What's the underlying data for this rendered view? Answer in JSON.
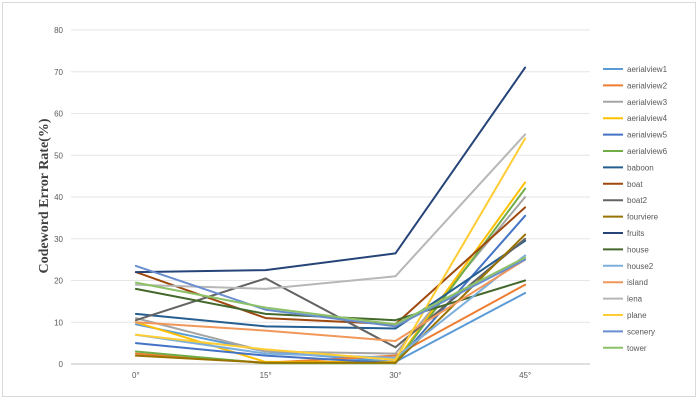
{
  "chart_data": {
    "type": "line",
    "title": "",
    "xlabel": "",
    "ylabel": "Codeword Error Rate(%)",
    "categories": [
      "0°",
      "15°",
      "30°",
      "45°"
    ],
    "ylim": [
      0,
      80
    ],
    "yticks": [
      0,
      10,
      20,
      30,
      40,
      50,
      60,
      70,
      80
    ],
    "grid": true,
    "legend": "right",
    "series": [
      {
        "name": "aerialview1",
        "color": "#5b9bd5",
        "values": [
          9.5,
          3.0,
          0.5,
          17.0
        ]
      },
      {
        "name": "aerialview2",
        "color": "#ed7d31",
        "values": [
          2.5,
          0.3,
          2.0,
          19.0
        ]
      },
      {
        "name": "aerialview3",
        "color": "#a5a5a5",
        "values": [
          11.0,
          3.0,
          2.5,
          40.0
        ]
      },
      {
        "name": "aerialview4",
        "color": "#ffc000",
        "values": [
          10.0,
          0.5,
          0.5,
          43.5
        ]
      },
      {
        "name": "aerialview5",
        "color": "#4472c4",
        "values": [
          5.0,
          2.0,
          0.2,
          35.5
        ]
      },
      {
        "name": "aerialview6",
        "color": "#70ad47",
        "values": [
          3.0,
          0.2,
          0.2,
          42.0
        ]
      },
      {
        "name": "baboon",
        "color": "#255e91",
        "values": [
          12.0,
          9.0,
          8.5,
          29.5
        ]
      },
      {
        "name": "boat",
        "color": "#9e480e",
        "values": [
          22.0,
          11.0,
          9.5,
          37.5
        ]
      },
      {
        "name": "boat2",
        "color": "#636363",
        "values": [
          10.5,
          20.5,
          4.0,
          30.0
        ]
      },
      {
        "name": "fourviere",
        "color": "#997300",
        "values": [
          2.0,
          0.3,
          0.3,
          31.0
        ]
      },
      {
        "name": "fruits",
        "color": "#264478",
        "values": [
          22.0,
          22.5,
          26.5,
          71.0
        ]
      },
      {
        "name": "house",
        "color": "#43682b",
        "values": [
          18.0,
          12.0,
          10.5,
          20.0
        ]
      },
      {
        "name": "house2",
        "color": "#7cafdd",
        "values": [
          7.0,
          2.5,
          1.5,
          26.0
        ]
      },
      {
        "name": "island",
        "color": "#f1975a",
        "values": [
          10.0,
          8.0,
          5.5,
          25.0
        ]
      },
      {
        "name": "lena",
        "color": "#b7b7b7",
        "values": [
          19.0,
          18.0,
          21.0,
          55.0
        ]
      },
      {
        "name": "plane",
        "color": "#ffcd33",
        "values": [
          7.0,
          3.5,
          1.0,
          54.0
        ]
      },
      {
        "name": "scenery",
        "color": "#698ed0",
        "values": [
          23.5,
          13.0,
          9.0,
          25.0
        ]
      },
      {
        "name": "tower",
        "color": "#8cc168",
        "values": [
          19.5,
          13.5,
          9.5,
          25.5
        ]
      }
    ]
  }
}
